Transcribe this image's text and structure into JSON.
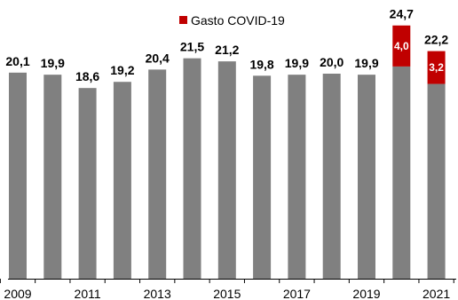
{
  "chart_data": {
    "type": "bar",
    "stacked": true,
    "title": "",
    "xlabel": "",
    "ylabel": "",
    "ylim": [
      0,
      27
    ],
    "grid": false,
    "legend_position": "top-center",
    "categories": [
      "2009",
      "2010",
      "2011",
      "2012",
      "2013",
      "2014",
      "2015",
      "2016",
      "2017",
      "2018",
      "2019",
      "2020",
      "2021"
    ],
    "tick_labels": [
      "2009",
      "2011",
      "2013",
      "2015",
      "2017",
      "2019",
      "2021"
    ],
    "totals": [
      20.1,
      19.9,
      18.6,
      19.2,
      20.4,
      21.5,
      21.2,
      19.8,
      19.9,
      20.0,
      19.9,
      24.7,
      22.2
    ],
    "total_labels": [
      "20,1",
      "19,9",
      "18,6",
      "19,2",
      "20,4",
      "21,5",
      "21,2",
      "19,8",
      "19,9",
      "20,0",
      "19,9",
      "24,7",
      "22,2"
    ],
    "series": [
      {
        "key": "base",
        "values": [
          20.1,
          19.9,
          18.6,
          19.2,
          20.4,
          21.5,
          21.2,
          19.8,
          19.9,
          20.0,
          19.9,
          20.7,
          19.0
        ],
        "color": "#808080"
      },
      {
        "key": "covid",
        "name": "Gasto COVID-19",
        "values": [
          0,
          0,
          0,
          0,
          0,
          0,
          0,
          0,
          0,
          0,
          0,
          4.0,
          3.2
        ],
        "labels": [
          "",
          "",
          "",
          "",
          "",
          "",
          "",
          "",
          "",
          "",
          "",
          "4,0",
          "3,2"
        ],
        "color": "#c00000"
      }
    ]
  }
}
